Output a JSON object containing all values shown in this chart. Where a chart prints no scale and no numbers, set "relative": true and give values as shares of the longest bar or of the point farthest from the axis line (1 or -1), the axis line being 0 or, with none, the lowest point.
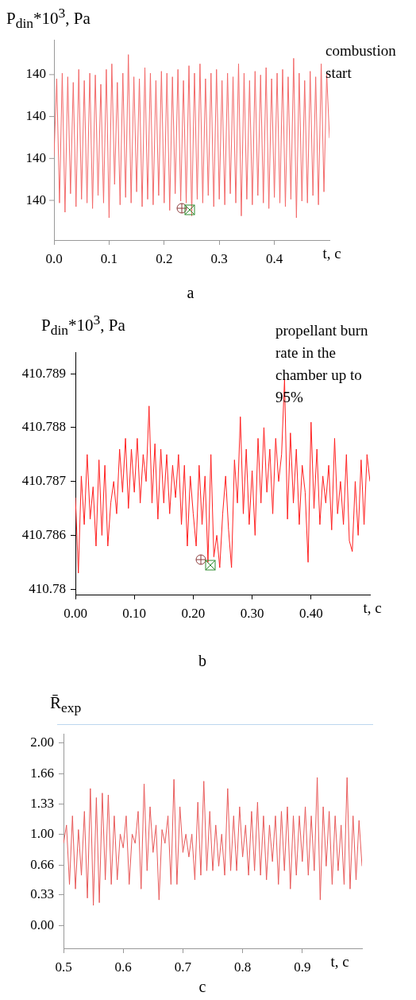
{
  "chart_data": [
    {
      "type": "line",
      "ylabel": "P$_{din}$*10$^{3}$, Pa",
      "xlabel": "t, c",
      "subtitle": "a",
      "relative": true,
      "annotations": [
        "combustion start",
        "140",
        "140",
        "140",
        "140"
      ],
      "xlim": [
        0,
        0.5
      ],
      "xticks": [
        {
          "value": 0,
          "label": "0.0"
        },
        0.1,
        0.2,
        0.3,
        0.4
      ],
      "x": [
        0,
        0.005,
        0.01,
        0.015,
        0.02,
        0.025,
        0.03,
        0.035,
        0.04,
        0.045,
        0.05,
        0.055,
        0.06,
        0.065,
        0.07,
        0.075,
        0.08,
        0.085,
        0.09,
        0.095,
        0.1,
        0.105,
        0.11,
        0.115,
        0.12,
        0.125,
        0.13,
        0.135,
        0.14,
        0.145,
        0.15,
        0.155,
        0.16,
        0.165,
        0.17,
        0.175,
        0.18,
        0.185,
        0.19,
        0.195,
        0.2,
        0.205,
        0.21,
        0.215,
        0.22,
        0.225,
        0.23,
        0.235,
        0.24,
        0.245,
        0.25,
        0.255,
        0.26,
        0.265,
        0.27,
        0.275,
        0.28,
        0.285,
        0.29,
        0.295,
        0.3,
        0.305,
        0.31,
        0.315,
        0.32,
        0.325,
        0.33,
        0.335,
        0.34,
        0.345,
        0.35,
        0.355,
        0.36,
        0.365,
        0.37,
        0.375,
        0.38,
        0.385,
        0.39,
        0.395,
        0.4,
        0.405,
        0.41,
        0.415,
        0.42,
        0.425,
        0.43,
        0.435,
        0.44,
        0.445,
        0.45,
        0.455,
        0.46,
        0.465,
        0.47,
        0.475,
        0.48,
        0.485,
        0.49,
        0.495,
        0.5
      ],
      "series": [
        {
          "color": "#f36a6a",
          "values": [
            0.45,
            0.87,
            0.2,
            0.9,
            0.15,
            0.88,
            0.25,
            0.85,
            0.18,
            0.92,
            0.22,
            0.86,
            0.2,
            0.9,
            0.17,
            0.89,
            0.24,
            0.84,
            0.2,
            0.92,
            0.12,
            0.95,
            0.3,
            0.85,
            0.19,
            0.9,
            0.23,
            1,
            0.2,
            0.88,
            0.26,
            0.87,
            0.18,
            0.93,
            0.22,
            0.9,
            0.19,
            0.86,
            0.24,
            0.91,
            0.2,
            0.9,
            0.16,
            0.88,
            0.25,
            0.92,
            0.21,
            0.86,
            0.2,
            0.94,
            0.13,
            0.9,
            0.22,
            0.95,
            0.2,
            0.87,
            0.24,
            0.9,
            0.18,
            0.92,
            0.22,
            0.86,
            0.19,
            0.9,
            0.25,
            0.88,
            0.2,
            0.95,
            0.13,
            0.9,
            0.22,
            0.86,
            0.19,
            0.91,
            0.24,
            0.89,
            0.2,
            0.93,
            0.17,
            0.87,
            0.23,
            0.9,
            0.2,
            0.92,
            0.18,
            0.88,
            0.22,
            0.98,
            0.12,
            0.9,
            0.21,
            0.86,
            0.2,
            0.91,
            0.24,
            0.88,
            0.19,
            0.95,
            0.26,
            0.9,
            0.55
          ]
        }
      ]
    },
    {
      "type": "line",
      "ylabel": "P$_{din}$*10$^{3}$, Pa",
      "xlabel": "t, c",
      "subtitle": "b",
      "annotations": [
        "propellant burn rate in the chamber up to 95%"
      ],
      "xlim": [
        0,
        0.5
      ],
      "xticks": [
        {
          "value": 0,
          "label": "0.00"
        },
        {
          "value": 0.1,
          "label": "0.10"
        },
        {
          "value": 0.2,
          "label": "0.20"
        },
        {
          "value": 0.3,
          "label": "0.30"
        },
        {
          "value": 0.4,
          "label": "0.40"
        }
      ],
      "ylim": [
        410.7849,
        410.7894
      ],
      "yticks": [
        {
          "value": 410.785,
          "label": "410.78"
        },
        410.786,
        410.787,
        410.788,
        410.789
      ],
      "x": [
        0,
        0.005,
        0.01,
        0.015,
        0.02,
        0.025,
        0.03,
        0.035,
        0.04,
        0.045,
        0.05,
        0.055,
        0.06,
        0.065,
        0.07,
        0.075,
        0.08,
        0.085,
        0.09,
        0.095,
        0.1,
        0.105,
        0.11,
        0.115,
        0.12,
        0.125,
        0.13,
        0.135,
        0.14,
        0.145,
        0.15,
        0.155,
        0.16,
        0.165,
        0.17,
        0.175,
        0.18,
        0.185,
        0.19,
        0.195,
        0.2,
        0.205,
        0.21,
        0.215,
        0.22,
        0.225,
        0.23,
        0.235,
        0.24,
        0.245,
        0.25,
        0.255,
        0.26,
        0.265,
        0.27,
        0.275,
        0.28,
        0.285,
        0.29,
        0.295,
        0.3,
        0.305,
        0.31,
        0.315,
        0.32,
        0.325,
        0.33,
        0.335,
        0.34,
        0.345,
        0.35,
        0.355,
        0.36,
        0.365,
        0.37,
        0.375,
        0.38,
        0.385,
        0.39,
        0.395,
        0.4,
        0.405,
        0.41,
        0.415,
        0.42,
        0.425,
        0.43,
        0.435,
        0.44,
        0.445,
        0.45,
        0.455,
        0.46,
        0.465,
        0.47,
        0.475,
        0.48,
        0.485,
        0.49,
        0.495,
        0.5
      ],
      "series": [
        {
          "color": "#ff2020",
          "values": [
            410.7867,
            410.7853,
            410.7871,
            410.7862,
            410.7875,
            410.7863,
            410.7869,
            410.7858,
            410.7874,
            410.786,
            410.7873,
            410.7858,
            410.7866,
            410.787,
            410.7864,
            410.7876,
            410.7868,
            410.7878,
            410.7865,
            410.7876,
            410.7868,
            410.7878,
            410.7866,
            410.7875,
            410.787,
            410.7884,
            410.7866,
            410.7877,
            410.7863,
            410.7876,
            410.7866,
            410.7875,
            410.7864,
            410.7873,
            410.7867,
            410.7875,
            410.7862,
            410.7873,
            410.7858,
            410.7871,
            410.7864,
            410.7858,
            410.7873,
            410.7862,
            410.7871,
            410.7855,
            410.7875,
            410.7856,
            410.786,
            410.7854,
            410.7864,
            410.7871,
            410.7861,
            410.7854,
            410.7874,
            410.7866,
            410.7882,
            410.7864,
            410.7876,
            410.7862,
            410.7872,
            410.786,
            410.7878,
            410.7866,
            410.788,
            410.7868,
            410.7876,
            410.7864,
            410.7878,
            410.787,
            410.7875,
            410.7889,
            410.7863,
            410.7879,
            410.7866,
            410.7876,
            410.7862,
            410.7873,
            410.7868,
            410.7855,
            410.7881,
            410.7865,
            410.7876,
            410.7862,
            410.7871,
            410.7866,
            410.7873,
            410.7861,
            410.7878,
            410.7864,
            410.787,
            410.7862,
            410.7875,
            410.7859,
            410.7857,
            410.787,
            410.786,
            410.7874,
            410.7862,
            410.7875,
            410.787
          ]
        }
      ]
    },
    {
      "type": "line",
      "ylabel": "R̄$_{exp}$",
      "xlabel": "t, c",
      "subtitle": "c",
      "xlim": [
        0.5,
        1
      ],
      "xticks": [
        0.5,
        0.6,
        0.7,
        0.8,
        0.9
      ],
      "ylim": [
        -0.25,
        2.1
      ],
      "yticks": [
        {
          "value": 0,
          "label": "0.00"
        },
        {
          "value": 0.3333,
          "label": "0.33"
        },
        {
          "value": 0.66,
          "label": "0.66"
        },
        {
          "value": 1,
          "label": "1.00"
        },
        {
          "value": 1.3333,
          "label": "1.33"
        },
        {
          "value": 1.66,
          "label": "1.66"
        },
        {
          "value": 2,
          "label": "2.00"
        }
      ],
      "x": [
        0.5,
        0.505,
        0.51,
        0.515,
        0.52,
        0.525,
        0.53,
        0.535,
        0.54,
        0.545,
        0.55,
        0.555,
        0.56,
        0.565,
        0.57,
        0.575,
        0.58,
        0.585,
        0.59,
        0.595,
        0.6,
        0.605,
        0.61,
        0.615,
        0.62,
        0.625,
        0.63,
        0.635,
        0.64,
        0.645,
        0.65,
        0.655,
        0.66,
        0.665,
        0.67,
        0.675,
        0.68,
        0.685,
        0.69,
        0.695,
        0.7,
        0.705,
        0.71,
        0.715,
        0.72,
        0.725,
        0.73,
        0.735,
        0.74,
        0.745,
        0.75,
        0.755,
        0.76,
        0.765,
        0.77,
        0.775,
        0.78,
        0.785,
        0.79,
        0.795,
        0.8,
        0.805,
        0.81,
        0.815,
        0.82,
        0.825,
        0.83,
        0.835,
        0.84,
        0.845,
        0.85,
        0.855,
        0.86,
        0.865,
        0.87,
        0.875,
        0.88,
        0.885,
        0.89,
        0.895,
        0.9,
        0.905,
        0.91,
        0.915,
        0.92,
        0.925,
        0.93,
        0.935,
        0.94,
        0.945,
        0.95,
        0.955,
        0.96,
        0.965,
        0.97,
        0.975,
        0.98,
        0.985,
        0.99,
        0.995,
        1
      ],
      "series": [
        {
          "color": "#e85a5a",
          "values": [
            0.9,
            1.1,
            0.45,
            1.2,
            0.4,
            1.05,
            0.55,
            1.25,
            0.3,
            1.5,
            0.22,
            1.4,
            0.25,
            1.45,
            0.5,
            1.43,
            0.45,
            1.2,
            0.5,
            1,
            0.85,
            1.2,
            0.45,
            1,
            0.9,
            1.25,
            0.4,
            1.55,
            0.6,
            1.3,
            0.8,
            1.1,
            0.28,
            1.05,
            0.9,
            1.2,
            0.45,
            1.6,
            0.45,
            1.3,
            0.8,
            1,
            0.75,
            1,
            0.5,
            1.35,
            0.55,
            1.58,
            0.6,
            1.25,
            0.6,
            1.1,
            0.65,
            1,
            0.55,
            1.5,
            0.6,
            1.2,
            0.6,
            1.3,
            0.75,
            1.1,
            0.55,
            1.25,
            0.6,
            1.35,
            0.55,
            1.2,
            0.5,
            1.1,
            0.7,
            1.2,
            0.45,
            1.25,
            0.6,
            1.3,
            0.4,
            1.2,
            0.55,
            1.2,
            0.7,
            1.3,
            0.55,
            1.2,
            0.6,
            1.62,
            0.28,
            1.3,
            0.65,
            1.25,
            0.45,
            1.2,
            0.6,
            1.1,
            0.45,
            1.62,
            0.4,
            1.2,
            0.5,
            1.15,
            0.65
          ]
        }
      ]
    }
  ]
}
